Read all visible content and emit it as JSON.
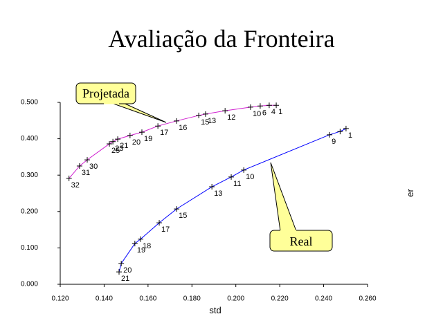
{
  "chart_data": {
    "type": "scatter-line",
    "title": "Avaliação da Fronteira",
    "x_label": "std",
    "y_label": "er",
    "xlim": [
      0.12,
      0.26
    ],
    "xticks": [
      {
        "value": 0.12,
        "label": "0.120"
      },
      {
        "value": 0.14,
        "label": "0.140"
      },
      {
        "value": 0.16,
        "label": "0.160"
      },
      {
        "value": 0.18,
        "label": "0.180"
      },
      {
        "value": 0.2,
        "label": "0.200"
      },
      {
        "value": 0.22,
        "label": "0.220"
      },
      {
        "value": 0.24,
        "label": "0.240"
      },
      {
        "value": 0.26,
        "label": "0.260"
      }
    ],
    "ylim": [
      0,
      0.5
    ],
    "yticks": [
      {
        "value": 0,
        "label": "0.000"
      },
      {
        "value": 0.1,
        "label": "0.100"
      },
      {
        "value": 0.2,
        "label": "0.200"
      },
      {
        "value": 0.3,
        "label": "0.300"
      },
      {
        "value": 0.4,
        "label": "0.400"
      },
      {
        "value": 0.5,
        "label": "0.500"
      }
    ],
    "grid": false,
    "series": [
      {
        "name": "Projetada",
        "color": "#d020d0",
        "x": [
          0.124,
          0.1288,
          0.1323,
          0.1424,
          0.144,
          0.1462,
          0.1518,
          0.1572,
          0.1645,
          0.173,
          0.1831,
          0.1862,
          0.1951,
          0.2067,
          0.2111,
          0.2152,
          0.2184
        ],
        "values": [
          0.291,
          0.325,
          0.342,
          0.386,
          0.392,
          0.399,
          0.409,
          0.418,
          0.435,
          0.449,
          0.464,
          0.468,
          0.477,
          0.487,
          0.49,
          0.492,
          0.492
        ],
        "point_labels": [
          "32",
          "31",
          "30",
          "25",
          "23",
          "21",
          "20",
          "19",
          "17",
          "16",
          "15",
          "13",
          "12",
          "10",
          "6",
          "4",
          "1"
        ]
      },
      {
        "name": "Real",
        "color": "#0000ff",
        "x": [
          0.1468,
          0.1478,
          0.154,
          0.1566,
          0.1651,
          0.173,
          0.1891,
          0.1979,
          0.2036,
          0.2427,
          0.2475,
          0.2502
        ],
        "values": [
          0.034,
          0.057,
          0.112,
          0.124,
          0.169,
          0.207,
          0.268,
          0.295,
          0.314,
          0.411,
          0.42,
          0.428
        ],
        "point_labels": [
          "21",
          "20",
          "19",
          "18",
          "17",
          "15",
          "13",
          "11",
          "10",
          "9",
          null,
          "1"
        ]
      }
    ]
  }
}
